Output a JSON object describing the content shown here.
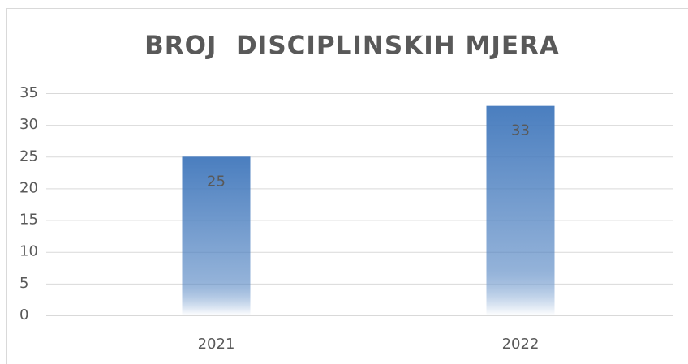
{
  "chart_data": {
    "type": "bar",
    "title": "BROJ  DISCIPLINSKIH MJERA",
    "categories": [
      "2021",
      "2022"
    ],
    "values": [
      25,
      33
    ],
    "color": "#4a7ebf",
    "ylim": [
      0,
      35
    ],
    "yticks": [
      0,
      5,
      10,
      15,
      20,
      25,
      30,
      35
    ],
    "grid": true
  }
}
